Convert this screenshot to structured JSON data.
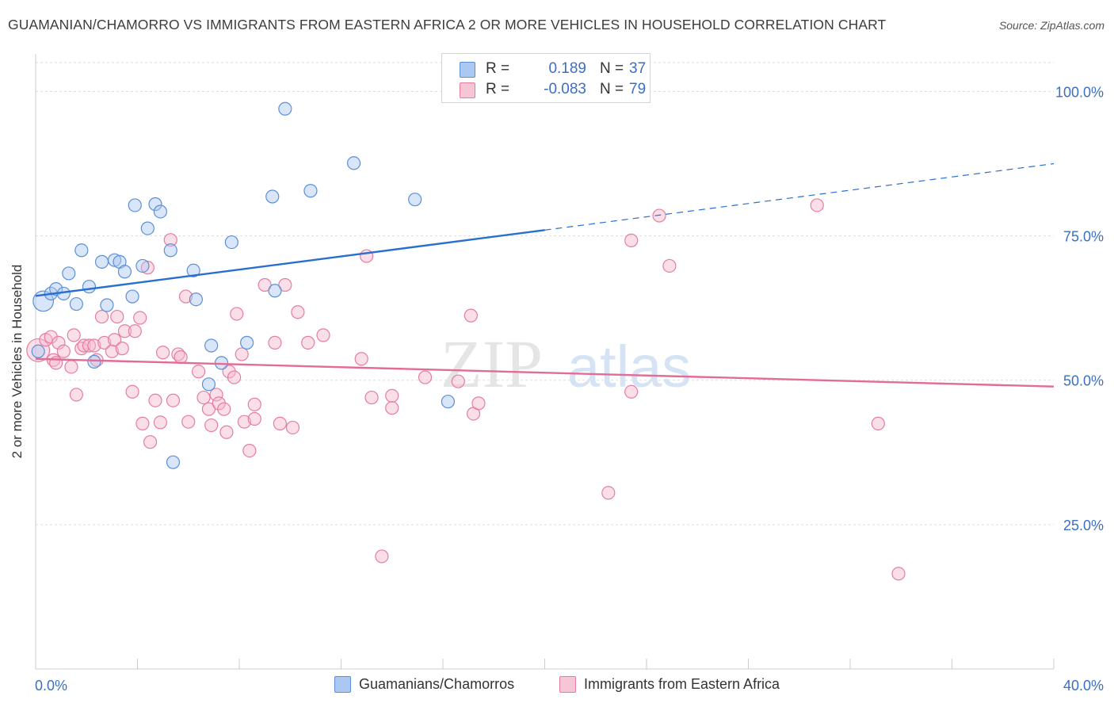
{
  "title": "GUAMANIAN/CHAMORRO VS IMMIGRANTS FROM EASTERN AFRICA 2 OR MORE VEHICLES IN HOUSEHOLD CORRELATION CHART",
  "source": "Source: ZipAtlas.com",
  "watermark": {
    "zip": "ZIP",
    "atlas": "atlas"
  },
  "legend_top": [
    {
      "r_label": "R =",
      "r_value": "0.189",
      "n_label": "N =",
      "n_value": "37"
    },
    {
      "r_label": "R =",
      "r_value": "-0.083",
      "n_label": "N =",
      "n_value": "79"
    }
  ],
  "legend_bottom": [
    "Guamanians/Chamorros",
    "Immigrants from Eastern Africa"
  ],
  "colors": {
    "blue_fill": "#aac8f2",
    "blue_stroke": "#5b8fd6",
    "blue_line": "#2a6fd0",
    "pink_fill": "#f7b9cc",
    "pink_stroke": "#e57d9f",
    "pink_line": "#e26c95",
    "tick_label": "#3a6fc4",
    "grid": "#dddddd"
  },
  "chart_data": {
    "type": "scatter",
    "title": "GUAMANIAN/CHAMORRO VS IMMIGRANTS FROM EASTERN AFRICA 2 OR MORE VEHICLES IN HOUSEHOLD CORRELATION CHART",
    "xlabel": "",
    "ylabel": "2 or more Vehicles in Household",
    "xlim": [
      0,
      40
    ],
    "ylim": [
      0,
      105
    ],
    "x_tick_labels": [
      "0.0%",
      "40.0%"
    ],
    "y_ticks": [
      25,
      50,
      75,
      100
    ],
    "y_tick_labels": [
      "25.0%",
      "50.0%",
      "75.0%",
      "100.0%"
    ],
    "series": [
      {
        "name": "Guamanians/Chamorros",
        "color": "blue",
        "R": 0.189,
        "N": 37,
        "trend": {
          "x0": 0,
          "y0": 64.6,
          "x1": 20,
          "y1": 76.0,
          "x_dash_end": 40,
          "y_dash_end": 87.5
        },
        "points": [
          {
            "x": 0.3,
            "y": 63.7,
            "s": 1.6
          },
          {
            "x": 0.6,
            "y": 65.0,
            "s": 1
          },
          {
            "x": 0.8,
            "y": 65.8,
            "s": 1
          },
          {
            "x": 1.1,
            "y": 65.0,
            "s": 1
          },
          {
            "x": 1.3,
            "y": 68.5,
            "s": 1
          },
          {
            "x": 1.6,
            "y": 63.2,
            "s": 1
          },
          {
            "x": 1.8,
            "y": 72.5,
            "s": 1
          },
          {
            "x": 2.1,
            "y": 66.2,
            "s": 1
          },
          {
            "x": 2.3,
            "y": 53.2,
            "s": 1
          },
          {
            "x": 2.6,
            "y": 70.5,
            "s": 1
          },
          {
            "x": 2.8,
            "y": 63.0,
            "s": 1
          },
          {
            "x": 3.1,
            "y": 70.8,
            "s": 1
          },
          {
            "x": 3.3,
            "y": 70.5,
            "s": 1
          },
          {
            "x": 3.5,
            "y": 68.8,
            "s": 1
          },
          {
            "x": 3.8,
            "y": 64.5,
            "s": 1
          },
          {
            "x": 3.9,
            "y": 80.3,
            "s": 1
          },
          {
            "x": 4.2,
            "y": 69.8,
            "s": 1
          },
          {
            "x": 4.4,
            "y": 76.3,
            "s": 1
          },
          {
            "x": 4.7,
            "y": 80.5,
            "s": 1
          },
          {
            "x": 4.9,
            "y": 79.2,
            "s": 1
          },
          {
            "x": 5.3,
            "y": 72.5,
            "s": 1
          },
          {
            "x": 5.4,
            "y": 35.8,
            "s": 1
          },
          {
            "x": 6.2,
            "y": 69.0,
            "s": 1
          },
          {
            "x": 6.3,
            "y": 64.0,
            "s": 1
          },
          {
            "x": 6.8,
            "y": 49.3,
            "s": 1
          },
          {
            "x": 6.9,
            "y": 56.0,
            "s": 1
          },
          {
            "x": 7.3,
            "y": 53.0,
            "s": 1
          },
          {
            "x": 7.7,
            "y": 73.9,
            "s": 1
          },
          {
            "x": 8.3,
            "y": 56.5,
            "s": 1
          },
          {
            "x": 9.3,
            "y": 81.8,
            "s": 1
          },
          {
            "x": 9.4,
            "y": 65.5,
            "s": 1
          },
          {
            "x": 9.8,
            "y": 97.0,
            "s": 1
          },
          {
            "x": 10.8,
            "y": 82.8,
            "s": 1
          },
          {
            "x": 12.5,
            "y": 87.6,
            "s": 1
          },
          {
            "x": 14.9,
            "y": 81.3,
            "s": 1
          },
          {
            "x": 16.2,
            "y": 46.3,
            "s": 1
          },
          {
            "x": 0.1,
            "y": 55.0,
            "s": 1
          }
        ]
      },
      {
        "name": "Immigrants from Eastern Africa",
        "color": "pink",
        "R": -0.083,
        "N": 79,
        "trend": {
          "x0": 0,
          "y0": 53.7,
          "x1": 40,
          "y1": 48.9
        },
        "points": [
          {
            "x": 0.1,
            "y": 55.2,
            "s": 1.8
          },
          {
            "x": 0.4,
            "y": 57.0,
            "s": 1
          },
          {
            "x": 0.6,
            "y": 57.5,
            "s": 1
          },
          {
            "x": 0.7,
            "y": 53.5,
            "s": 1
          },
          {
            "x": 0.8,
            "y": 53.0,
            "s": 1
          },
          {
            "x": 0.9,
            "y": 56.5,
            "s": 1
          },
          {
            "x": 1.1,
            "y": 55.0,
            "s": 1
          },
          {
            "x": 1.4,
            "y": 52.3,
            "s": 1
          },
          {
            "x": 1.5,
            "y": 57.8,
            "s": 1
          },
          {
            "x": 1.6,
            "y": 47.5,
            "s": 1
          },
          {
            "x": 1.8,
            "y": 55.5,
            "s": 1
          },
          {
            "x": 1.9,
            "y": 56.0,
            "s": 1
          },
          {
            "x": 2.1,
            "y": 56.0,
            "s": 1
          },
          {
            "x": 2.3,
            "y": 56.0,
            "s": 1
          },
          {
            "x": 2.4,
            "y": 53.5,
            "s": 1
          },
          {
            "x": 2.6,
            "y": 61.0,
            "s": 1
          },
          {
            "x": 2.7,
            "y": 56.5,
            "s": 1
          },
          {
            "x": 3.0,
            "y": 55.0,
            "s": 1
          },
          {
            "x": 3.1,
            "y": 57.0,
            "s": 1
          },
          {
            "x": 3.2,
            "y": 61.0,
            "s": 1
          },
          {
            "x": 3.4,
            "y": 55.5,
            "s": 1
          },
          {
            "x": 3.5,
            "y": 58.5,
            "s": 1
          },
          {
            "x": 3.8,
            "y": 48.0,
            "s": 1
          },
          {
            "x": 3.9,
            "y": 58.5,
            "s": 1
          },
          {
            "x": 4.1,
            "y": 60.8,
            "s": 1
          },
          {
            "x": 4.2,
            "y": 42.5,
            "s": 1
          },
          {
            "x": 4.4,
            "y": 69.5,
            "s": 1
          },
          {
            "x": 4.5,
            "y": 39.3,
            "s": 1
          },
          {
            "x": 4.7,
            "y": 46.5,
            "s": 1
          },
          {
            "x": 4.9,
            "y": 42.7,
            "s": 1
          },
          {
            "x": 5.0,
            "y": 54.8,
            "s": 1
          },
          {
            "x": 5.3,
            "y": 74.3,
            "s": 1
          },
          {
            "x": 5.4,
            "y": 46.5,
            "s": 1
          },
          {
            "x": 5.6,
            "y": 54.5,
            "s": 1
          },
          {
            "x": 5.7,
            "y": 54.0,
            "s": 1
          },
          {
            "x": 5.9,
            "y": 64.5,
            "s": 1
          },
          {
            "x": 6.0,
            "y": 42.8,
            "s": 1
          },
          {
            "x": 6.4,
            "y": 51.5,
            "s": 1
          },
          {
            "x": 6.6,
            "y": 47.0,
            "s": 1
          },
          {
            "x": 6.8,
            "y": 45.0,
            "s": 1
          },
          {
            "x": 6.9,
            "y": 42.2,
            "s": 1
          },
          {
            "x": 7.1,
            "y": 47.5,
            "s": 1
          },
          {
            "x": 7.2,
            "y": 46.0,
            "s": 1
          },
          {
            "x": 7.4,
            "y": 45.0,
            "s": 1
          },
          {
            "x": 7.5,
            "y": 41.0,
            "s": 1
          },
          {
            "x": 7.6,
            "y": 51.5,
            "s": 1
          },
          {
            "x": 7.8,
            "y": 50.5,
            "s": 1
          },
          {
            "x": 7.9,
            "y": 61.5,
            "s": 1
          },
          {
            "x": 8.1,
            "y": 54.5,
            "s": 1
          },
          {
            "x": 8.2,
            "y": 42.8,
            "s": 1
          },
          {
            "x": 8.4,
            "y": 37.8,
            "s": 1
          },
          {
            "x": 8.6,
            "y": 45.8,
            "s": 1
          },
          {
            "x": 8.6,
            "y": 43.3,
            "s": 1
          },
          {
            "x": 9.0,
            "y": 66.5,
            "s": 1
          },
          {
            "x": 9.4,
            "y": 56.5,
            "s": 1
          },
          {
            "x": 9.6,
            "y": 42.5,
            "s": 1
          },
          {
            "x": 9.8,
            "y": 66.5,
            "s": 1
          },
          {
            "x": 10.1,
            "y": 41.8,
            "s": 1
          },
          {
            "x": 10.3,
            "y": 61.8,
            "s": 1
          },
          {
            "x": 10.7,
            "y": 56.5,
            "s": 1
          },
          {
            "x": 11.3,
            "y": 57.8,
            "s": 1
          },
          {
            "x": 12.8,
            "y": 53.7,
            "s": 1
          },
          {
            "x": 13.0,
            "y": 71.5,
            "s": 1
          },
          {
            "x": 13.2,
            "y": 47.0,
            "s": 1
          },
          {
            "x": 14.0,
            "y": 47.3,
            "s": 1
          },
          {
            "x": 14.0,
            "y": 45.2,
            "s": 1
          },
          {
            "x": 15.3,
            "y": 50.5,
            "s": 1
          },
          {
            "x": 16.6,
            "y": 49.8,
            "s": 1
          },
          {
            "x": 17.1,
            "y": 61.2,
            "s": 1
          },
          {
            "x": 17.2,
            "y": 44.2,
            "s": 1
          },
          {
            "x": 17.4,
            "y": 46.0,
            "s": 1
          },
          {
            "x": 13.6,
            "y": 19.5,
            "s": 1
          },
          {
            "x": 22.5,
            "y": 30.5,
            "s": 1
          },
          {
            "x": 23.4,
            "y": 74.2,
            "s": 1
          },
          {
            "x": 23.4,
            "y": 48.0,
            "s": 1
          },
          {
            "x": 24.5,
            "y": 78.5,
            "s": 1
          },
          {
            "x": 24.9,
            "y": 69.8,
            "s": 1
          },
          {
            "x": 30.7,
            "y": 80.3,
            "s": 1
          },
          {
            "x": 33.1,
            "y": 42.5,
            "s": 1
          },
          {
            "x": 33.9,
            "y": 16.5,
            "s": 1
          }
        ]
      }
    ]
  }
}
